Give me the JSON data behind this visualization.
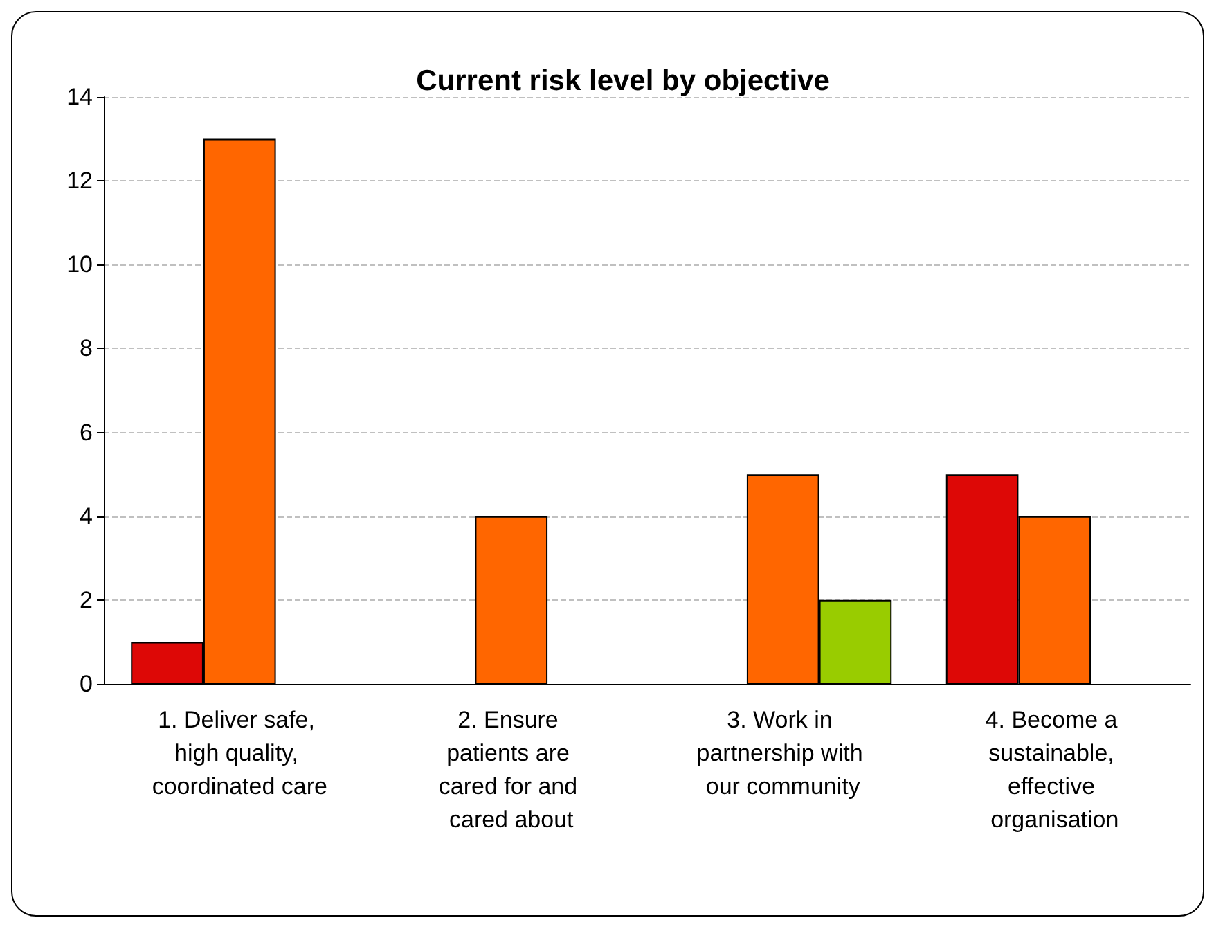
{
  "chart_data": {
    "type": "bar",
    "title": "Current risk level by objective",
    "categories": [
      "1. Deliver safe, high quality, coordinated care",
      "2. Ensure patients are cared for and cared about",
      "3. Work in partnership with our community",
      "4. Become a sustainable, effective organisation"
    ],
    "series": [
      {
        "color": "#dd0806",
        "values": [
          1,
          null,
          null,
          5
        ]
      },
      {
        "color": "#ff6600",
        "values": [
          13,
          4,
          5,
          4
        ]
      },
      {
        "color": "#99cc00",
        "values": [
          null,
          null,
          2,
          null
        ]
      }
    ],
    "ylim": [
      0,
      14
    ],
    "yticks": [
      0,
      2,
      4,
      6,
      8,
      10,
      12,
      14
    ],
    "grid": "y"
  }
}
